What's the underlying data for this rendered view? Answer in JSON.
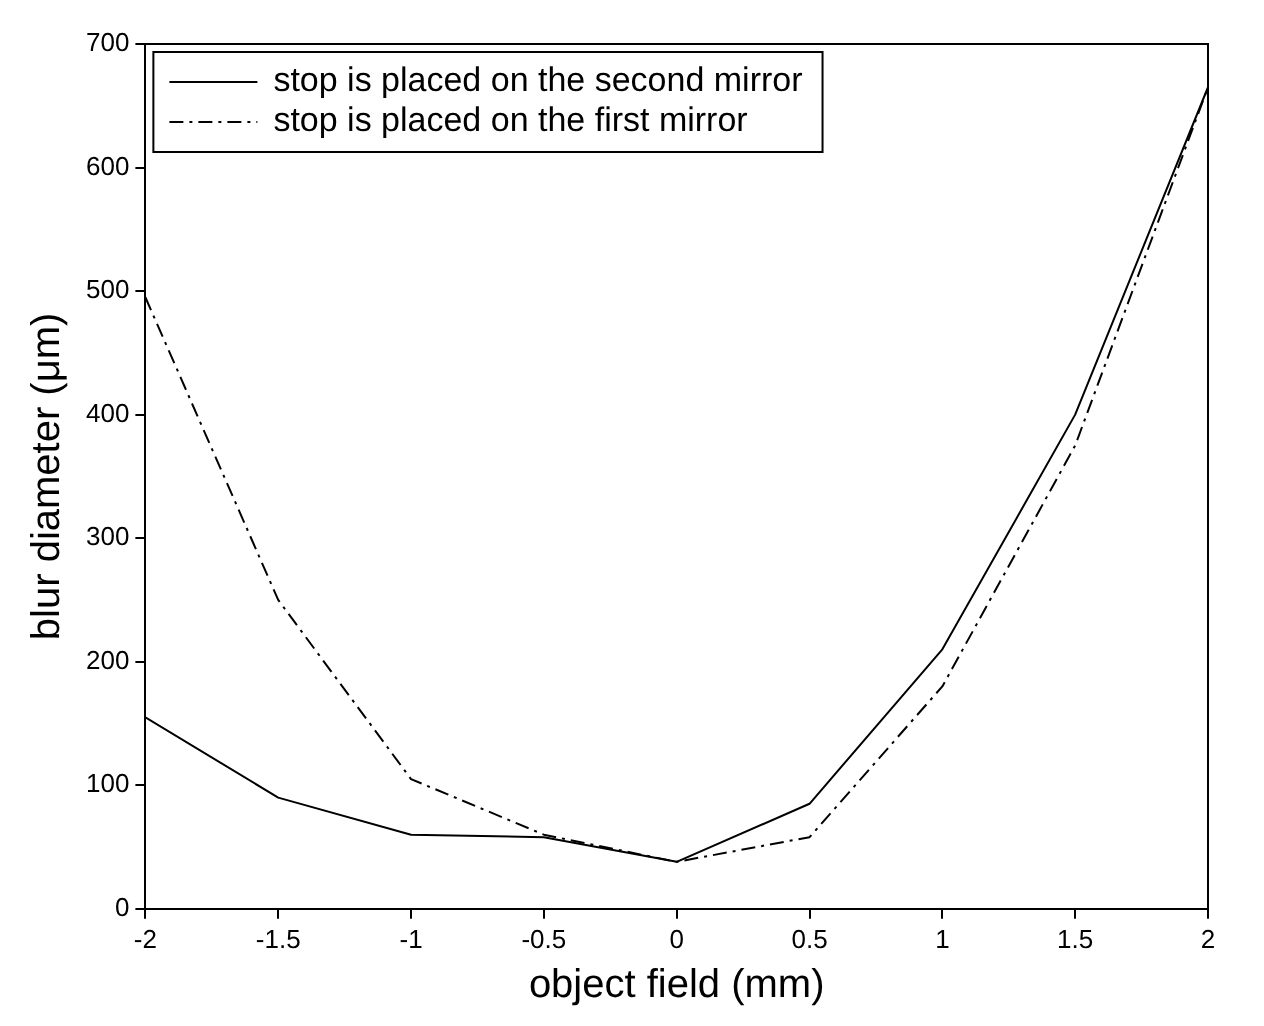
{
  "chart_data": {
    "type": "line",
    "xlabel": "object field (mm)",
    "ylabel": "blur diameter (μm)",
    "x": [
      -2,
      -1.5,
      -1,
      -0.5,
      0,
      0.5,
      1,
      1.5,
      2
    ],
    "series": [
      {
        "name": "stop is placed on the second mirror",
        "color": "#000000",
        "line_style": "solid",
        "values": [
          155,
          90,
          60,
          58,
          38,
          85,
          210,
          400,
          665
        ]
      },
      {
        "name": "stop is placed on the first mirror",
        "color": "#000000",
        "line_style": "dashed",
        "values": [
          495,
          250,
          105,
          60,
          38,
          58,
          180,
          375,
          665
        ]
      }
    ],
    "xlim": [
      -2,
      2
    ],
    "xticks": [
      -2,
      -1.5,
      -1,
      -0.5,
      0,
      0.5,
      1,
      1.5,
      2
    ],
    "ylim": [
      0,
      700
    ],
    "yticks": [
      0,
      100,
      200,
      300,
      400,
      500,
      600,
      700
    ],
    "grid": false,
    "legend": "top left",
    "marker": "none"
  }
}
